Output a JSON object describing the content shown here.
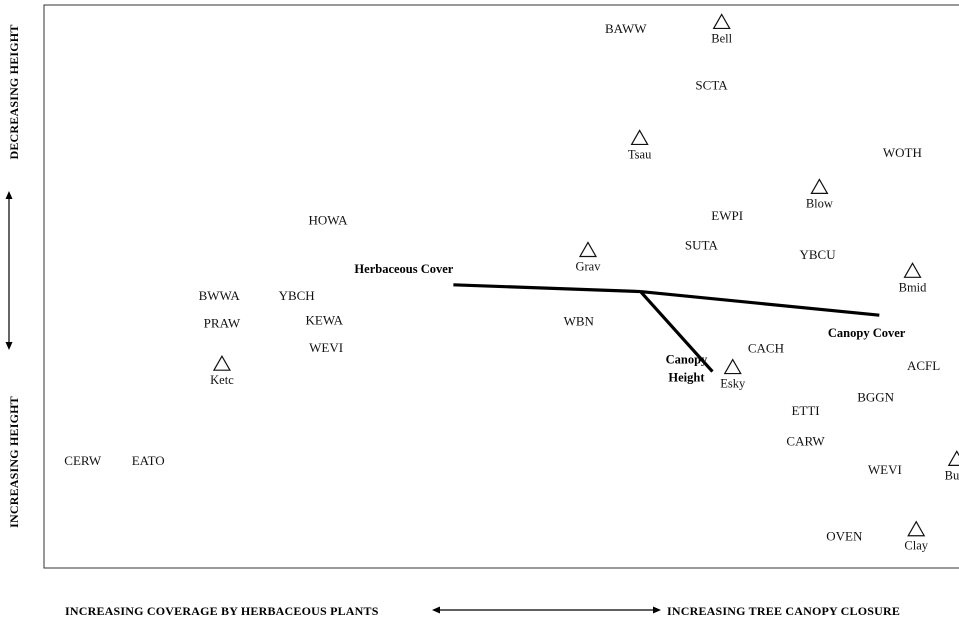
{
  "chart_data": {
    "type": "scatter",
    "x_axis_label_left": "INCREASING COVERAGE BY HERBACEOUS PLANTS",
    "x_axis_label_right": "INCREASING TREE CANOPY CLOSURE",
    "y_axis_label_top": "DECREASING HEIGHT",
    "y_axis_label_bottom": "INCREASING HEIGHT",
    "grid": false,
    "species": [
      {
        "label": "BAWW",
        "x": 0.631,
        "y": 0.957
      },
      {
        "label": "SCTA",
        "x": 0.724,
        "y": 0.857
      },
      {
        "label": "WOTH",
        "x": 0.931,
        "y": 0.737
      },
      {
        "label": "HOWA",
        "x": 0.308,
        "y": 0.617
      },
      {
        "label": "EWPI",
        "x": 0.741,
        "y": 0.625
      },
      {
        "label": "SUTA",
        "x": 0.713,
        "y": 0.573
      },
      {
        "label": "YBCU",
        "x": 0.839,
        "y": 0.556
      },
      {
        "label": "BWWA",
        "x": 0.19,
        "y": 0.483
      },
      {
        "label": "YBCH",
        "x": 0.274,
        "y": 0.483
      },
      {
        "label": "PRAW",
        "x": 0.193,
        "y": 0.434
      },
      {
        "label": "KEWA",
        "x": 0.304,
        "y": 0.44
      },
      {
        "label": "WBN",
        "x": 0.58,
        "y": 0.438
      },
      {
        "label": "WEVI",
        "x": 0.306,
        "y": 0.391
      },
      {
        "label": "CACH",
        "x": 0.783,
        "y": 0.39
      },
      {
        "label": "ACFL",
        "x": 0.954,
        "y": 0.359
      },
      {
        "label": "BGGN",
        "x": 0.902,
        "y": 0.303
      },
      {
        "label": "ETTI",
        "x": 0.826,
        "y": 0.279
      },
      {
        "label": "CARW",
        "x": 0.826,
        "y": 0.225
      },
      {
        "label": "CERW",
        "x": 0.042,
        "y": 0.19
      },
      {
        "label": "EATO",
        "x": 0.113,
        "y": 0.19
      },
      {
        "label": "WEVI",
        "x": 0.912,
        "y": 0.174
      },
      {
        "label": "OVEN",
        "x": 0.868,
        "y": 0.056
      }
    ],
    "sites": [
      {
        "label": "Bell",
        "x": 0.735,
        "y": 0.969
      },
      {
        "label": "Tsau",
        "x": 0.646,
        "y": 0.763
      },
      {
        "label": "Blow",
        "x": 0.841,
        "y": 0.676
      },
      {
        "label": "Grav",
        "x": 0.59,
        "y": 0.564
      },
      {
        "label": "Bmid",
        "x": 0.942,
        "y": 0.527
      },
      {
        "label": "Ketc",
        "x": 0.193,
        "y": 0.362
      },
      {
        "label": "Esky",
        "x": 0.747,
        "y": 0.356
      },
      {
        "label": "Buhi",
        "x": 0.99,
        "y": 0.193
      },
      {
        "label": "Clay",
        "x": 0.946,
        "y": 0.068
      }
    ],
    "vectors": [
      {
        "label": "Herbaceous Cover",
        "x_start": 0.647,
        "y_start": 0.491,
        "x_end": 0.444,
        "y_end": 0.503
      },
      {
        "label": "Canopy Cover",
        "x_start": 0.647,
        "y_start": 0.491,
        "x_end": 0.906,
        "y_end": 0.449
      },
      {
        "label": "Canopy Height",
        "x_start": 0.647,
        "y_start": 0.491,
        "x_end": 0.725,
        "y_end": 0.349
      }
    ]
  }
}
